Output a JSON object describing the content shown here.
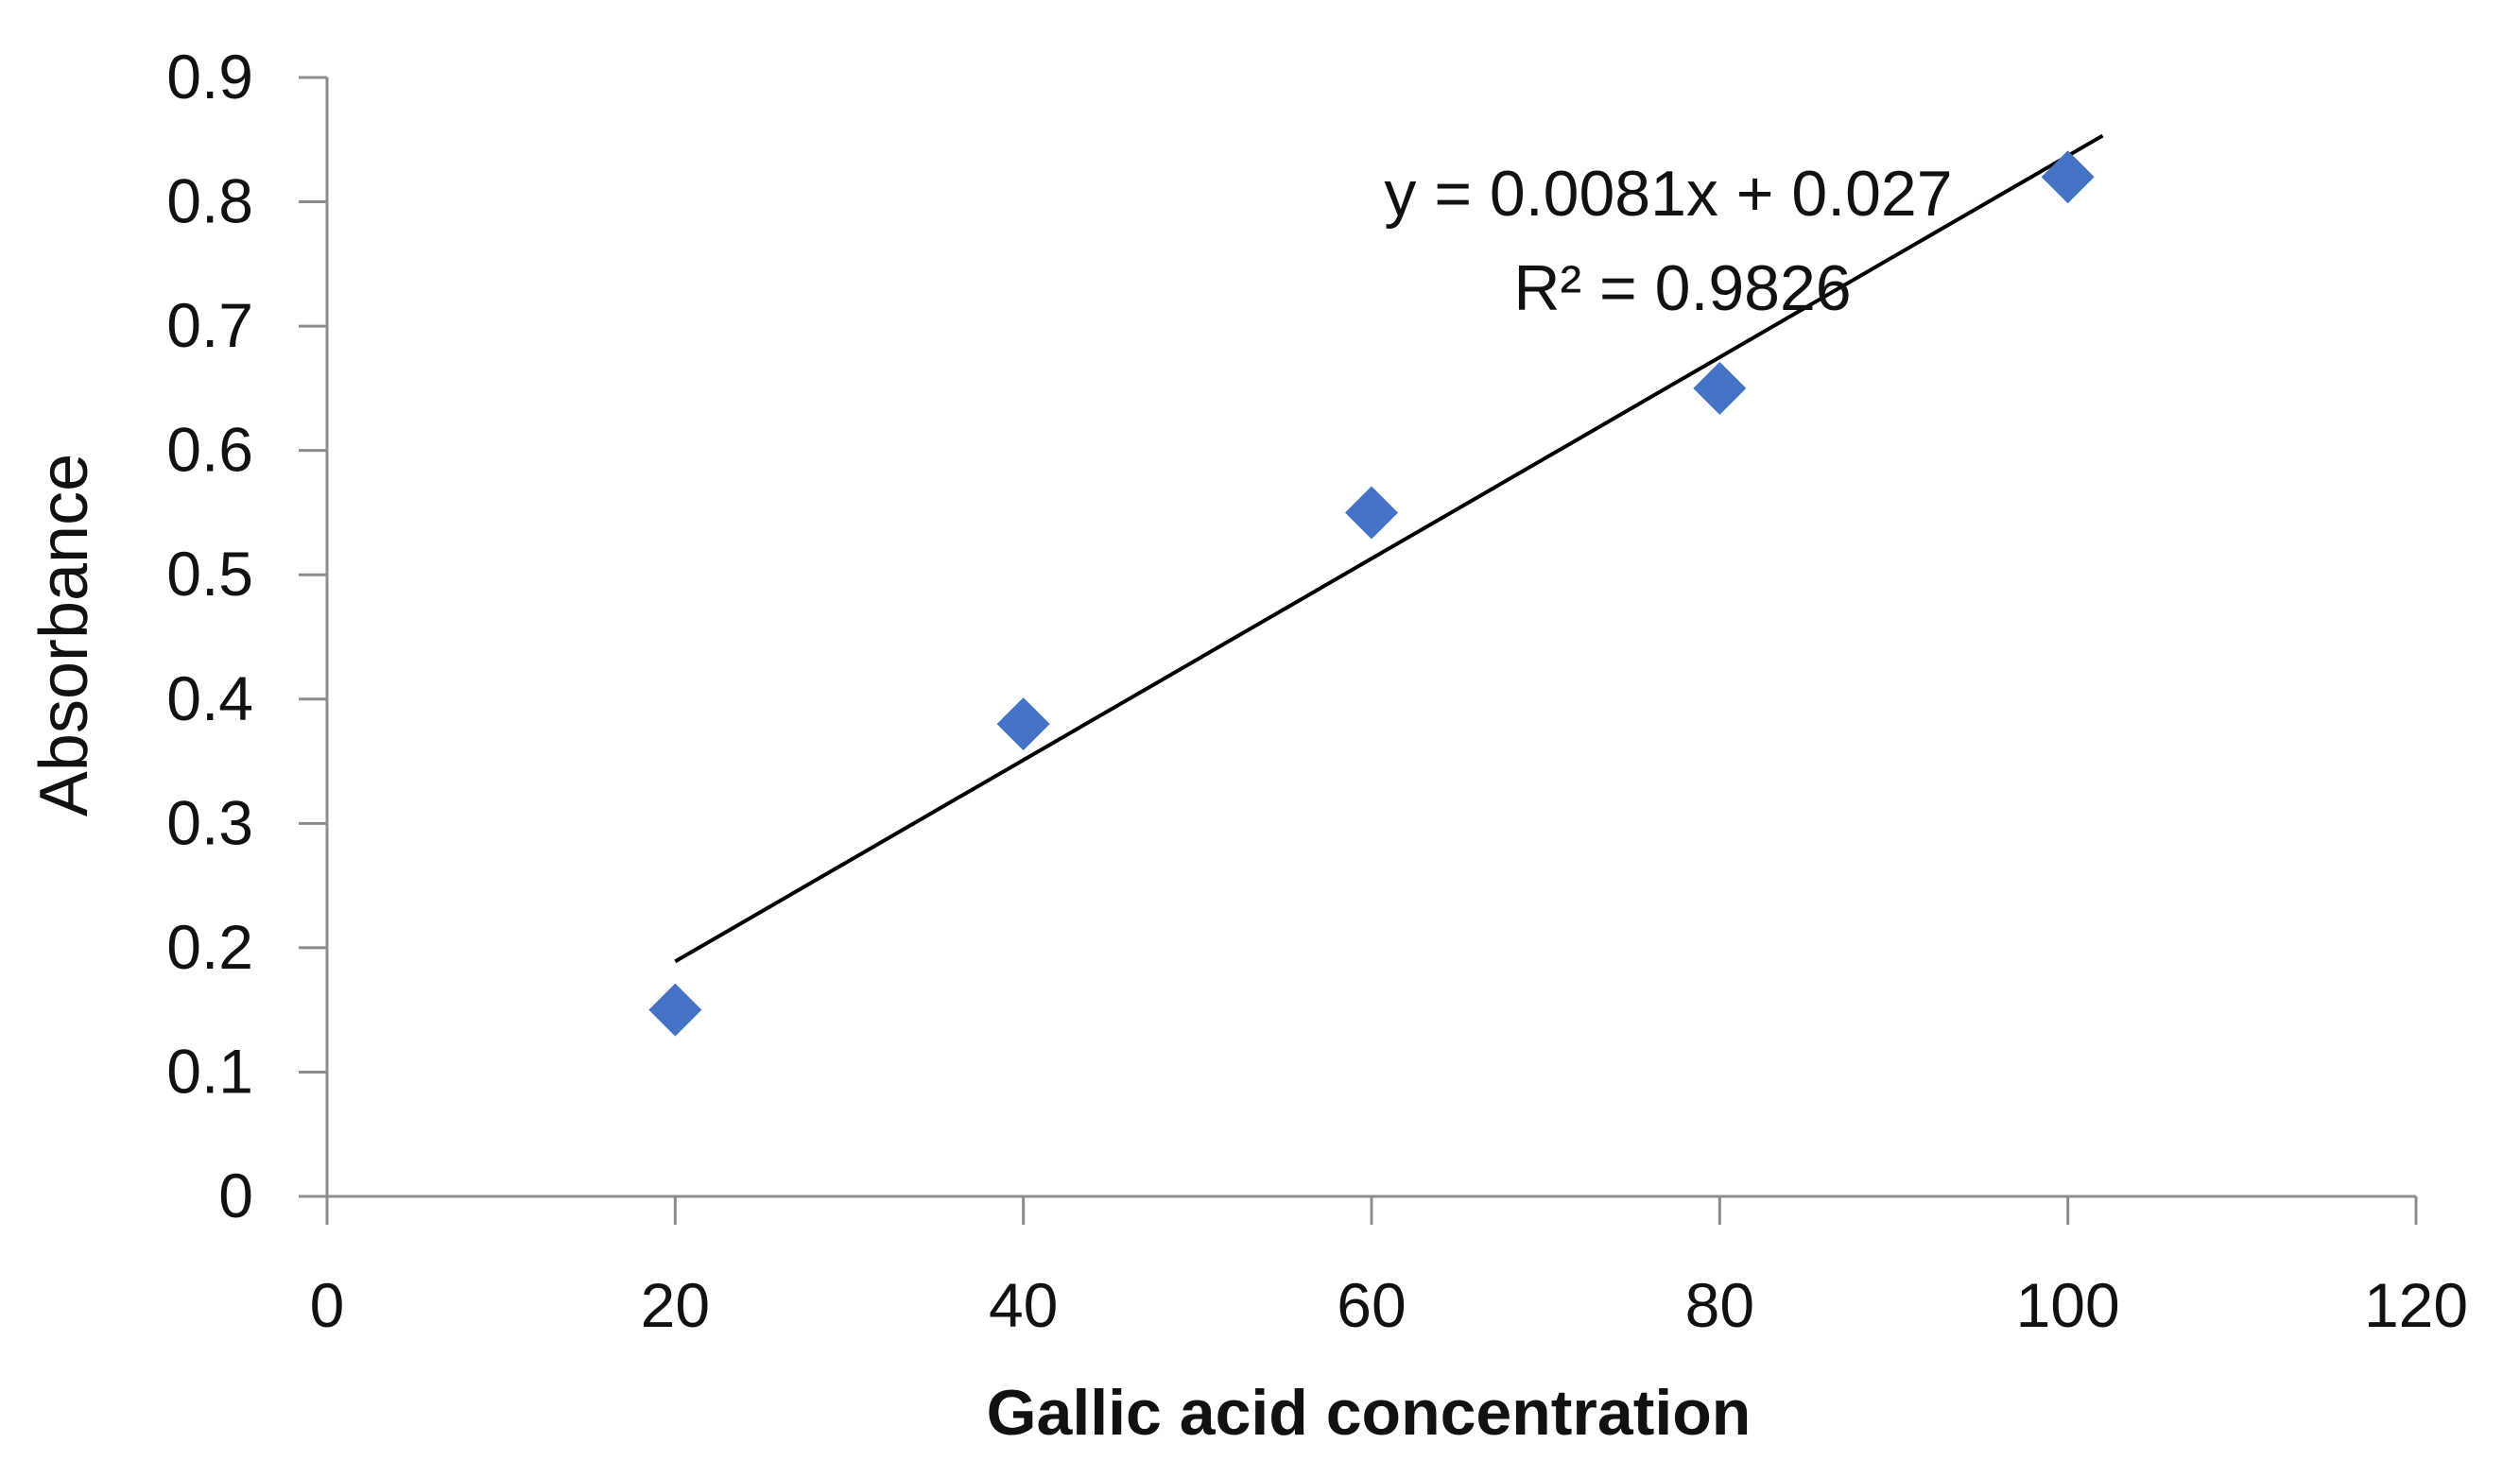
{
  "chart_data": {
    "type": "scatter",
    "title": "",
    "xlabel": "Gallic acid concentration",
    "ylabel": "Absorbance",
    "xlim": [
      0,
      120
    ],
    "ylim": [
      0,
      0.9
    ],
    "x_ticks": [
      "0",
      "20",
      "40",
      "60",
      "80",
      "100",
      "120"
    ],
    "y_ticks": [
      "0",
      "0.1",
      "0.2",
      "0.3",
      "0.4",
      "0.5",
      "0.6",
      "0.7",
      "0.8",
      "0.9"
    ],
    "grid": false,
    "legend": "none",
    "marker": "diamond",
    "marker_color": "#4472C4",
    "series": [
      {
        "points": [
          {
            "x": 20,
            "y": 0.15
          },
          {
            "x": 40,
            "y": 0.38
          },
          {
            "x": 60,
            "y": 0.55
          },
          {
            "x": 80,
            "y": 0.65
          },
          {
            "x": 100,
            "y": 0.82
          }
        ]
      }
    ],
    "trendline": {
      "type": "linear",
      "slope": 0.0081,
      "intercept": 0.027,
      "x_range": [
        20,
        102
      ],
      "color": "#000000"
    },
    "annotations": {
      "equation": "y = 0.0081x + 0.027",
      "r_squared": "R² = 0.9826"
    }
  }
}
